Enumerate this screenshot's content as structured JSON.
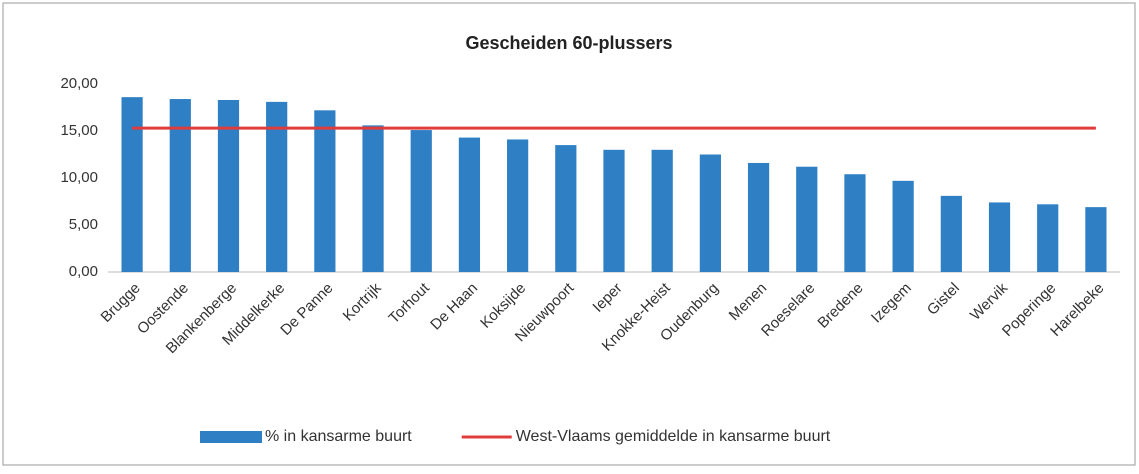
{
  "chart_data": {
    "type": "bar",
    "title": "Gescheiden 60-plussers",
    "categories": [
      "Brugge",
      "Oostende",
      "Blankenberge",
      "Middelkerke",
      "De Panne",
      "Kortrijk",
      "Torhout",
      "De Haan",
      "Koksijde",
      "Nieuwpoort",
      "Ieper",
      "Knokke-Heist",
      "Oudenburg",
      "Menen",
      "Roeselare",
      "Bredene",
      "Izegem",
      "Gistel",
      "Wervik",
      "Poperinge",
      "Harelbeke"
    ],
    "series": [
      {
        "name": "% in kansarme buurt",
        "type": "bar",
        "color": "#2e7fc4",
        "values": [
          18.6,
          18.4,
          18.3,
          18.1,
          17.2,
          15.6,
          15.1,
          14.3,
          14.1,
          13.5,
          13.0,
          13.0,
          12.5,
          11.6,
          11.2,
          10.4,
          9.7,
          8.1,
          7.4,
          7.2,
          6.9
        ]
      },
      {
        "name": "West-Vlaams gemiddelde in kansarme buurt",
        "type": "line",
        "color": "#e03c3c",
        "values": [
          15.3,
          15.3,
          15.3,
          15.3,
          15.3,
          15.3,
          15.3,
          15.3,
          15.3,
          15.3,
          15.3,
          15.3,
          15.3,
          15.3,
          15.3,
          15.3,
          15.3,
          15.3,
          15.3,
          15.3,
          15.3
        ]
      }
    ],
    "ylim": [
      0,
      20
    ],
    "yticks": [
      {
        "value": 0,
        "label": "0,00"
      },
      {
        "value": 5,
        "label": "5,00"
      },
      {
        "value": 10,
        "label": "10,00"
      },
      {
        "value": 15,
        "label": "15,00"
      },
      {
        "value": 20,
        "label": "20,00"
      }
    ],
    "grid": false,
    "legend": "bottom"
  }
}
